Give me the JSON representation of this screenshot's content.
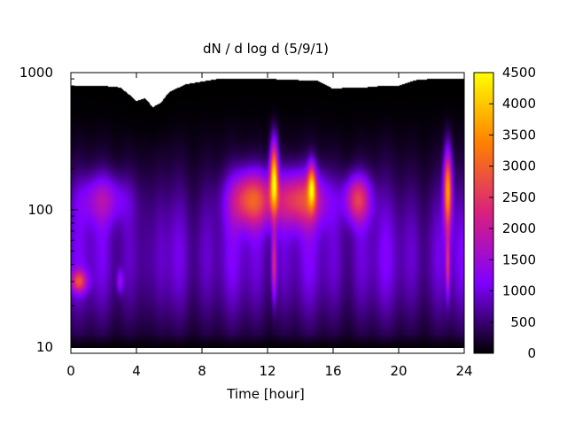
{
  "chart_data": {
    "type": "heatmap",
    "title": "dN / d log d (5/9/1)",
    "xlabel": "Time [hour]",
    "ylabel": "",
    "x_range": [
      0,
      24
    ],
    "y_range": [
      9,
      1000
    ],
    "y_scale": "log",
    "x_ticks": [
      "0",
      "4",
      "8",
      "12",
      "16",
      "20",
      "24"
    ],
    "y_ticks": [
      "10",
      "100",
      "1000"
    ],
    "colorbar": {
      "range": [
        0,
        4500
      ],
      "ticks": [
        "0",
        "500",
        "1000",
        "1500",
        "2000",
        "2500",
        "3000",
        "3500",
        "4000",
        "4500"
      ],
      "palette": [
        "#000000",
        "#7f00ff",
        "#d9207f",
        "#ff8000",
        "#ffff00"
      ]
    },
    "upper_cutoff_diameter": [
      [
        0,
        800
      ],
      [
        1,
        800
      ],
      [
        2,
        800
      ],
      [
        3,
        780
      ],
      [
        3.5,
        700
      ],
      [
        4,
        620
      ],
      [
        4.5,
        650
      ],
      [
        5,
        560
      ],
      [
        5.5,
        600
      ],
      [
        6,
        720
      ],
      [
        7,
        820
      ],
      [
        8,
        860
      ],
      [
        9,
        900
      ],
      [
        10,
        900
      ],
      [
        12,
        900
      ],
      [
        14,
        880
      ],
      [
        15,
        880
      ],
      [
        16,
        760
      ],
      [
        17,
        780
      ],
      [
        18,
        780
      ],
      [
        19,
        800
      ],
      [
        20,
        800
      ],
      [
        21,
        880
      ],
      [
        22,
        900
      ],
      [
        23,
        900
      ],
      [
        24,
        900
      ]
    ],
    "lower_cutoff_diameter": 9.4,
    "modes": [
      {
        "x": 11,
        "y": 120,
        "peak": 2800,
        "wx": 1.3,
        "wy": 0.2
      },
      {
        "x": 14,
        "y": 120,
        "peak": 2500,
        "wx": 1.6,
        "wy": 0.2
      },
      {
        "x": 17.5,
        "y": 120,
        "peak": 2400,
        "wx": 0.8,
        "wy": 0.17
      },
      {
        "x": 12.4,
        "y": 180,
        "peak": 4000,
        "wx": 0.25,
        "wy": 0.25
      },
      {
        "x": 12.4,
        "y": 40,
        "peak": 2000,
        "wx": 0.15,
        "wy": 0.25
      },
      {
        "x": 23.0,
        "y": 140,
        "peak": 3800,
        "wx": 0.25,
        "wy": 0.28
      },
      {
        "x": 23.0,
        "y": 40,
        "peak": 1900,
        "wx": 0.12,
        "wy": 0.22
      },
      {
        "x": 14.7,
        "y": 150,
        "peak": 2900,
        "wx": 0.25,
        "wy": 0.16
      },
      {
        "x": 0.5,
        "y": 30,
        "peak": 2200,
        "wx": 0.5,
        "wy": 0.08
      },
      {
        "x": 2.0,
        "y": 120,
        "peak": 1300,
        "wx": 1.5,
        "wy": 0.18
      },
      {
        "x": 3.0,
        "y": 30,
        "peak": 1000,
        "wx": 0.2,
        "wy": 0.08
      }
    ],
    "background_level": 1000
  }
}
